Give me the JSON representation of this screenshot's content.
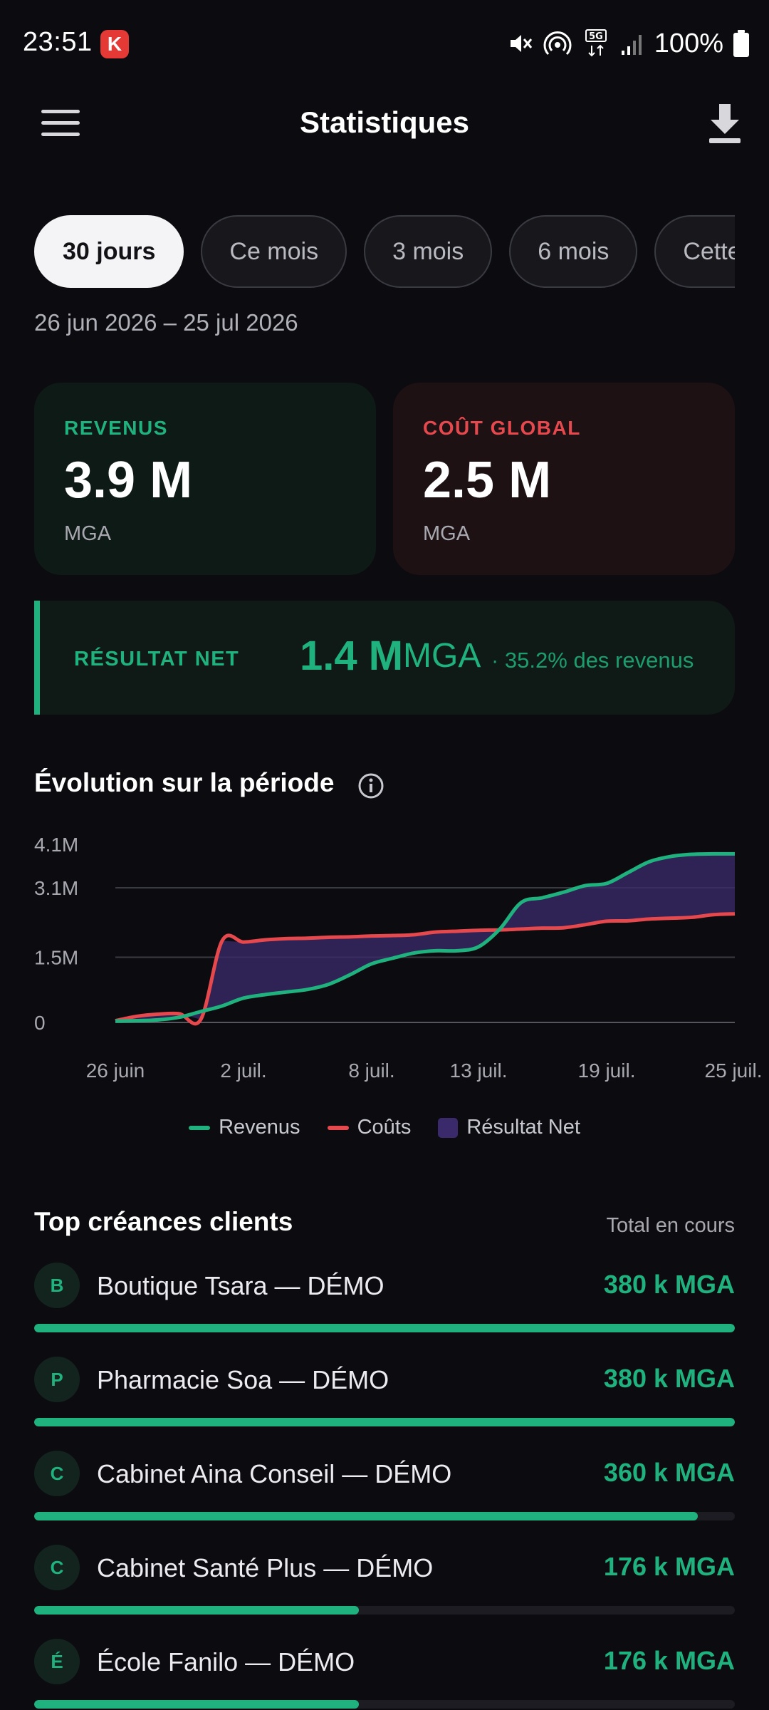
{
  "status_bar": {
    "time": "23:51",
    "app_badge": "K",
    "battery": "100%",
    "network_label": "5G",
    "icons": [
      "mute-icon",
      "hotspot-icon",
      "5g-data-icon",
      "signal-icon",
      "battery-icon"
    ]
  },
  "app_bar": {
    "title": "Statistiques",
    "menu_icon": "hamburger-menu-icon",
    "action_icon": "download-icon"
  },
  "periods": {
    "chips": [
      "30 jours",
      "Ce mois",
      "3 mois",
      "6 mois",
      "Cette"
    ],
    "selected": "30 jours",
    "date_range": "26 jun 2026 – 25 jul 2026"
  },
  "kpis": {
    "revenue": {
      "label": "REVENUS",
      "value": "3.9 M",
      "unit": "MGA",
      "color": "#20b27e"
    },
    "cost": {
      "label": "COÛT GLOBAL",
      "value": "2.5 M",
      "unit": "MGA",
      "color": "#e5484d"
    }
  },
  "net_result": {
    "label": "RÉSULTAT NET",
    "value": "1.4 M",
    "unit": "MGA",
    "percent_text": "· 35.2% des revenus",
    "color": "#20b27e"
  },
  "chart_section": {
    "title": "Évolution sur la période",
    "info_icon": "info-icon"
  },
  "chart_data": {
    "type": "line",
    "x": [
      "26 juin",
      "27 juin",
      "28 juin",
      "29 juin",
      "30 juin",
      "1 juil.",
      "2 juil.",
      "3 juil.",
      "4 juil.",
      "5 juil.",
      "6 juil.",
      "7 juil.",
      "8 juil.",
      "9 juil.",
      "10 juil.",
      "11 juil.",
      "12 juil.",
      "13 juil.",
      "14 juil.",
      "15 juil.",
      "16 juil.",
      "17 juil.",
      "18 juil.",
      "19 juil.",
      "20 juil.",
      "21 juil.",
      "22 juil.",
      "23 juil.",
      "24 juil.",
      "25 juil."
    ],
    "x_tick_labels": [
      "26 juin",
      "2 juil.",
      "8 juil.",
      "13 juil.",
      "19 juil.",
      "25 juil."
    ],
    "x_tick_indices": [
      0,
      6,
      12,
      17,
      23,
      29
    ],
    "y_tick_labels": [
      "0",
      "1.5M",
      "3.1M",
      "4.1M"
    ],
    "y_tick_values": [
      0,
      1500000,
      3100000,
      4100000
    ],
    "ylim": [
      0,
      4100000
    ],
    "series": [
      {
        "name": "Revenus",
        "color": "#20b27e",
        "values": [
          30000,
          40000,
          60000,
          120000,
          250000,
          380000,
          560000,
          640000,
          700000,
          760000,
          880000,
          1100000,
          1350000,
          1480000,
          1600000,
          1650000,
          1650000,
          1740000,
          2150000,
          2760000,
          2870000,
          3000000,
          3150000,
          3200000,
          3450000,
          3700000,
          3820000,
          3870000,
          3880000,
          3880000
        ]
      },
      {
        "name": "Coûts",
        "color": "#e5484d",
        "values": [
          40000,
          140000,
          190000,
          200000,
          70000,
          1880000,
          1850000,
          1900000,
          1930000,
          1940000,
          1960000,
          1970000,
          1990000,
          2000000,
          2020000,
          2080000,
          2100000,
          2120000,
          2130000,
          2150000,
          2170000,
          2180000,
          2250000,
          2330000,
          2340000,
          2380000,
          2400000,
          2420000,
          2480000,
          2500000
        ]
      }
    ],
    "area": {
      "name": "Résultat Net",
      "color": "#3b2a6b"
    },
    "grid": true,
    "legend_position": "bottom"
  },
  "legend": {
    "revenue": "Revenus",
    "cost": "Coûts",
    "net": "Résultat Net"
  },
  "top_clients": {
    "title": "Top créances clients",
    "subtitle": "Total en cours",
    "items": [
      {
        "initial": "B",
        "name": "Boutique Tsara — DÉMO",
        "amount": "380 k MGA",
        "share": 1.0
      },
      {
        "initial": "P",
        "name": "Pharmacie Soa — DÉMO",
        "amount": "380 k MGA",
        "share": 1.0
      },
      {
        "initial": "C",
        "name": "Cabinet Aina Conseil — DÉMO",
        "amount": "360 k MGA",
        "share": 0.947
      },
      {
        "initial": "C",
        "name": "Cabinet Santé Plus — DÉMO",
        "amount": "176 k MGA",
        "share": 0.463
      },
      {
        "initial": "É",
        "name": "École Fanilo — DÉMO",
        "amount": "176 k MGA",
        "share": 0.463
      }
    ]
  }
}
